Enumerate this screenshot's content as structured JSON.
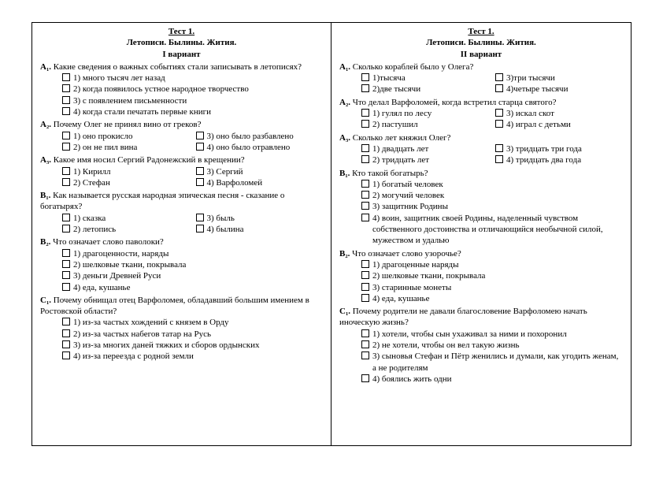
{
  "title": "Тест 1.",
  "subtitle": "Летописи. Былины. Жития.",
  "variants": [
    {
      "label": "I вариант",
      "questions": [
        {
          "code": "А₁.",
          "text": "Какие сведения о важных событиях стали записывать в летописях?",
          "cols": 1,
          "options": [
            "1) много тысяч лет назад",
            "2) когда появилось устное народное творчество",
            "3) с появлением письменности",
            "4) когда стали печатать первые книги"
          ]
        },
        {
          "code": "А₂.",
          "text": "Почему Олег не принял вино от греков?",
          "cols": 2,
          "options": [
            "1) оно прокисло",
            "3) оно было разбавлено",
            "2) он не пил вина",
            "4) оно было отравлено"
          ]
        },
        {
          "code": "А₃.",
          "text": "Какое имя носил Сергий Радонежский в крещении?",
          "cols": 2,
          "options": [
            "1) Кирилл",
            "3) Сергий",
            "2) Стефан",
            "4) Варфоломей"
          ]
        },
        {
          "code": "В₁.",
          "text": "Как называется русская народная эпическая песня - сказание о богатырях?",
          "cols": 2,
          "options": [
            "1) сказка",
            "3) быль",
            "2) летопись",
            "4) былина"
          ]
        },
        {
          "code": "В₂.",
          "text": "Что означает слово паволоки?",
          "cols": 1,
          "options": [
            "1) драгоценности, наряды",
            "2) шелковые ткани, покрывала",
            "3) деньги Древней Руси",
            "4) еда, кушанье"
          ]
        },
        {
          "code": "С₁.",
          "text": "Почему обнищал отец Варфоломея, обладавший большим имением в Ростовской области?",
          "cols": 1,
          "options": [
            "1) из-за частых хождений с князем в Орду",
            "2) из-за частых набегов татар на Русь",
            "3) из-за многих даней тяжких и сборов ордынских",
            "4) из-за переезда с родной земли"
          ]
        }
      ]
    },
    {
      "label": "II вариант",
      "questions": [
        {
          "code": "А₁.",
          "text": "Сколько кораблей было у Олега?",
          "cols": 2,
          "options": [
            "1)тысяча",
            "3)три тысячи",
            "2)две тысячи",
            "4)четыре тысячи"
          ]
        },
        {
          "code": "А₂.",
          "text": "Что делал Варфоломей, когда встретил старца святого?",
          "cols": 2,
          "options": [
            "1) гулял по лесу",
            "3) искал скот",
            "2) пастушил",
            "4) играл с детьми"
          ]
        },
        {
          "code": "А₃.",
          "text": "Сколько лет княжил Олег?",
          "cols": 2,
          "options": [
            "1) двадцать лет",
            "3) тридцать три года",
            "2) тридцать лет",
            "4) тридцать два года"
          ]
        },
        {
          "code": "В₁.",
          "text": "Кто такой богатырь?",
          "cols": 1,
          "options": [
            "1) богатый человек",
            "2) могучий человек",
            "3) защитник Родины",
            "4) воин, защитник своей Родины, наделенный чувством собственного достоинства и отличающийся необычной силой, мужеством и удалью"
          ]
        },
        {
          "code": "В₂.",
          "text": "Что означает слово узорочье?",
          "cols": 1,
          "options": [
            "1) драгоценные наряды",
            "2) шелковые ткани, покрывала",
            "3) старинные монеты",
            "4) еда, кушанье"
          ]
        },
        {
          "code": "С₁.",
          "text": "Почему родители не давали благословение Варфоломею начать иноческую жизнь?",
          "cols": 1,
          "options": [
            "1) хотели, чтобы сын ухаживал за ними и похоронил",
            "2) не хотели, чтобы он вел такую жизнь",
            "3) сыновья Стефан и Пётр женились и думали, как угодить женам, а не родителям",
            "4) боялись жить одни"
          ]
        }
      ]
    }
  ]
}
